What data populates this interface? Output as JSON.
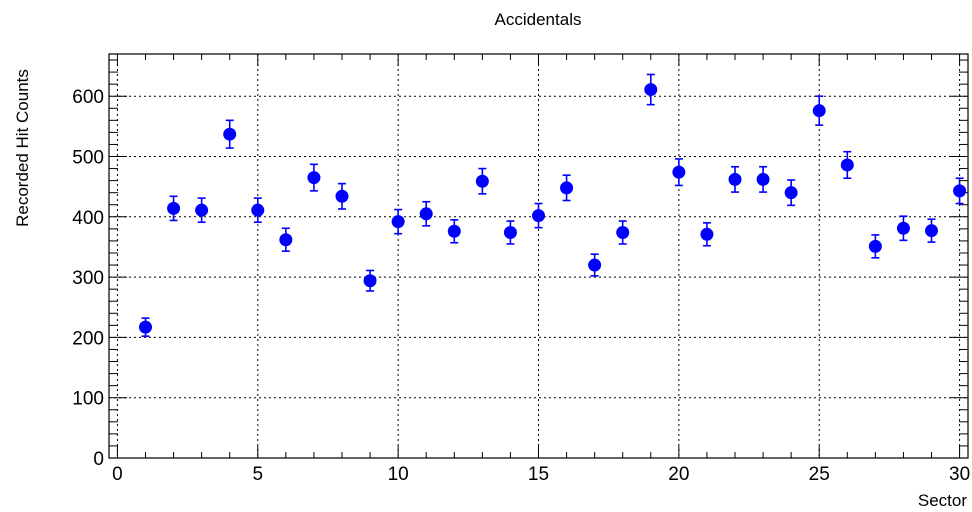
{
  "chart_data": {
    "type": "scatter",
    "title": "Accidentals",
    "xlabel": "Sector",
    "ylabel": "Recorded Hit Counts",
    "xlim": [
      -0.3,
      30.3
    ],
    "ylim": [
      0,
      670
    ],
    "x_ticks": [
      0,
      5,
      10,
      15,
      20,
      25,
      30
    ],
    "y_ticks": [
      0,
      100,
      200,
      300,
      400,
      500,
      600
    ],
    "grid": true,
    "marker_color": "#0000ff",
    "series": [
      {
        "x": [
          1,
          2,
          3,
          4,
          5,
          6,
          7,
          8,
          9,
          10,
          11,
          12,
          13,
          14,
          15,
          16,
          17,
          18,
          19,
          20,
          21,
          22,
          23,
          24,
          25,
          26,
          27,
          28,
          29,
          30
        ],
        "y": [
          217,
          414,
          411,
          537,
          411,
          362,
          465,
          434,
          294,
          392,
          405,
          376,
          459,
          374,
          402,
          448,
          320,
          374,
          611,
          474,
          371,
          462,
          462,
          440,
          576,
          486,
          351,
          381,
          377,
          443
        ],
        "err": [
          15,
          20,
          20,
          23,
          20,
          19,
          22,
          21,
          17,
          20,
          20,
          19,
          21,
          19,
          20,
          21,
          18,
          19,
          25,
          22,
          19,
          21,
          21,
          21,
          24,
          22,
          19,
          20,
          19,
          21
        ]
      }
    ]
  }
}
